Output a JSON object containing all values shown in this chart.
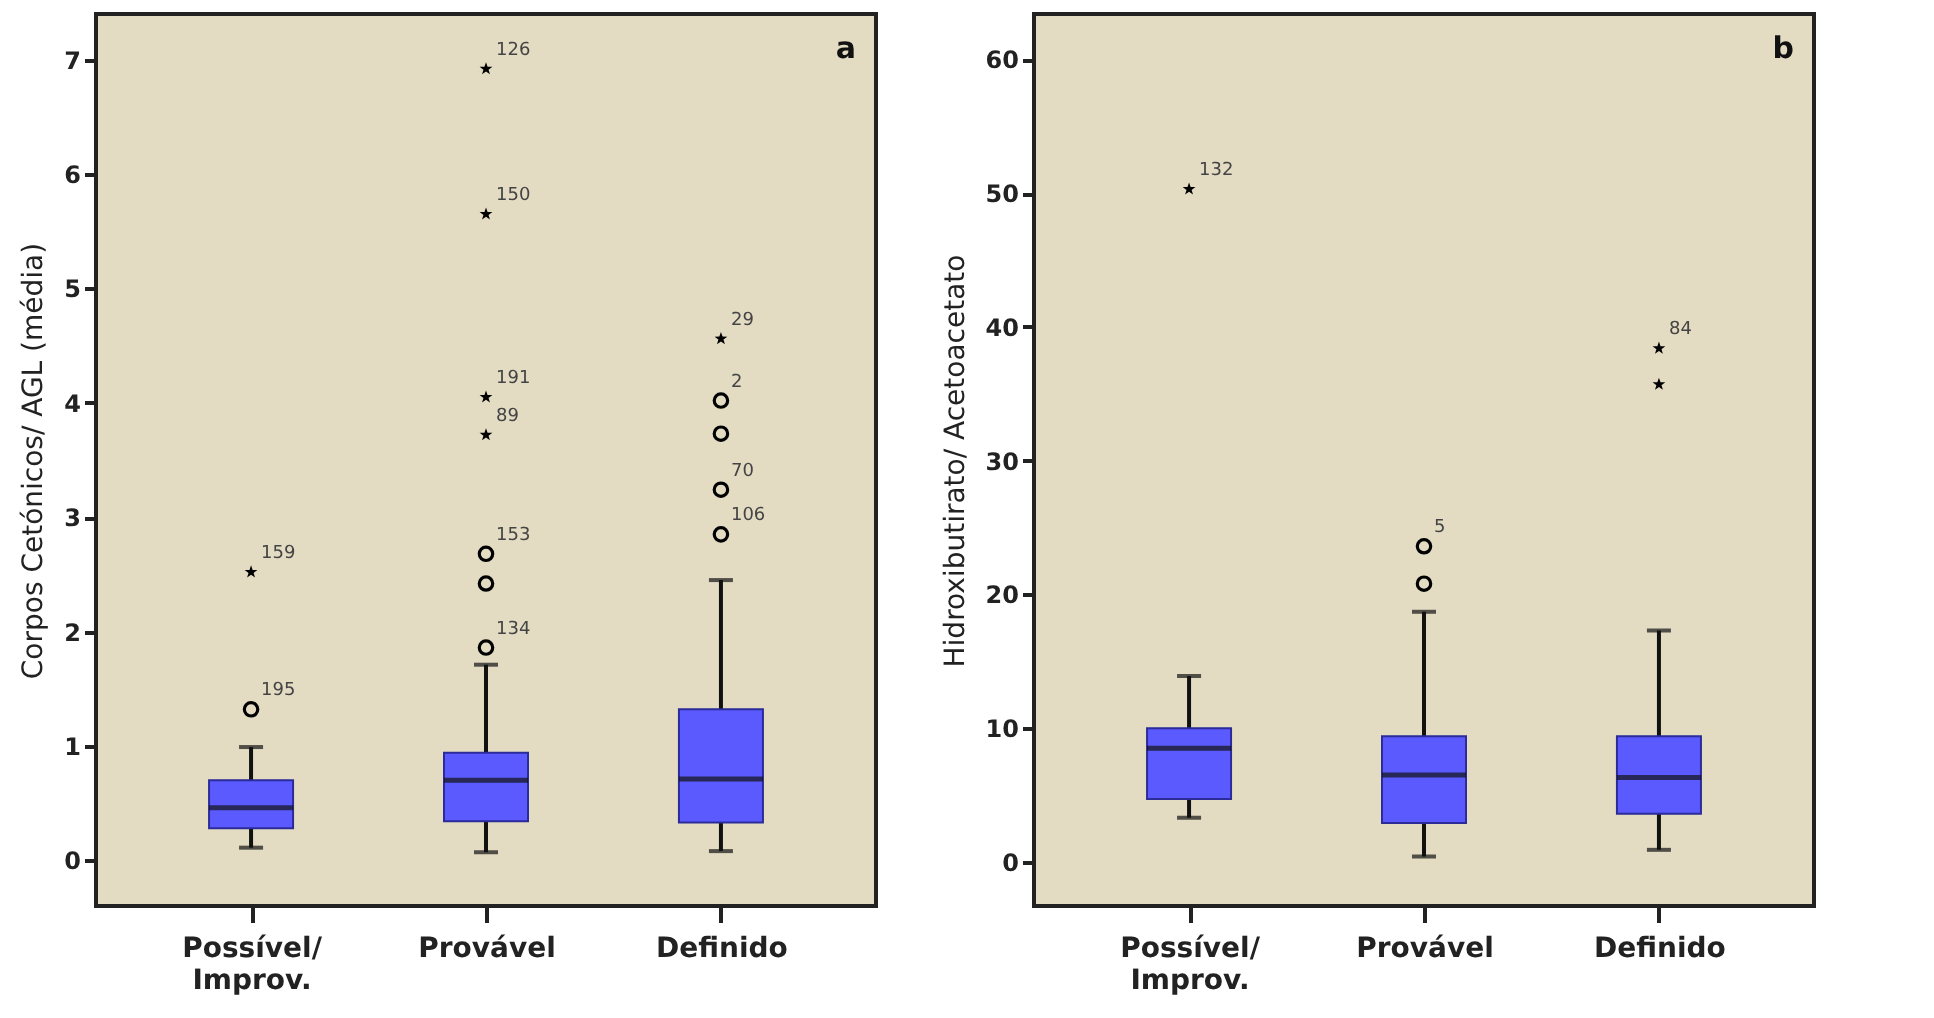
{
  "chart_data": [
    {
      "type": "box",
      "ylabel": "Corpos Cetónicos/ AGL (média)",
      "categories": [
        "Possível/\nImprov.",
        "Provável",
        "Definido"
      ],
      "ylim": [
        -0.4,
        7.4
      ],
      "yticks": [
        0,
        1,
        2,
        3,
        4,
        5,
        6,
        7
      ],
      "series": [
        {
          "color": "#5a5aff",
          "boxes": [
            {
              "low": 0.11,
              "q1": 0.28,
              "median": 0.46,
              "q3": 0.7,
              "high": 0.99
            },
            {
              "low": 0.07,
              "q1": 0.34,
              "median": 0.7,
              "q3": 0.94,
              "high": 1.71
            },
            {
              "low": 0.08,
              "q1": 0.33,
              "median": 0.71,
              "q3": 1.32,
              "high": 2.45
            }
          ]
        },
        {
          "type": "scatter",
          "marker": "circle",
          "color": "#000000",
          "x": [
            "Possível/\nImprov.",
            "Provável",
            "Provável",
            "Provável",
            "Definido",
            "Definido",
            "Definido",
            "Definido"
          ],
          "values": [
            1.32,
            1.86,
            2.42,
            2.68,
            2.85,
            3.24,
            3.73,
            4.02
          ]
        },
        {
          "type": "scatter",
          "marker": "star",
          "color": "#000000",
          "x": [
            "Possível/\nImprov.",
            "Provável",
            "Provável",
            "Provável",
            "Provável",
            "Definido"
          ],
          "values": [
            2.52,
            3.72,
            4.05,
            5.65,
            6.92,
            4.56
          ]
        }
      ],
      "annotations": [
        "a",
        {
          "text": "159",
          "x": "Possível/\nImprov.",
          "y": 2.52
        },
        {
          "text": "195",
          "x": "Possível/\nImprov.",
          "y": 1.32
        },
        {
          "text": "126",
          "x": "Provável",
          "y": 6.92
        },
        {
          "text": "150",
          "x": "Provável",
          "y": 5.65
        },
        {
          "text": "191",
          "x": "Provável",
          "y": 4.05
        },
        {
          "text": "89",
          "x": "Provável",
          "y": 3.72
        },
        {
          "text": "153",
          "x": "Provável",
          "y": 2.68
        },
        {
          "text": "134",
          "x": "Provável",
          "y": 1.86
        },
        {
          "text": "29",
          "x": "Definido",
          "y": 4.56
        },
        {
          "text": "2",
          "x": "Definido",
          "y": 4.02
        },
        {
          "text": "70",
          "x": "Definido",
          "y": 3.24
        },
        {
          "text": "106",
          "x": "Definido",
          "y": 2.85
        }
      ]
    },
    {
      "type": "box",
      "ylabel": "Hidroxibutirato/ Acetoacetato",
      "categories": [
        "Possível/\nImprov.",
        "Provável",
        "Definido"
      ],
      "ylim": [
        -3.3,
        63.4
      ],
      "yticks": [
        0,
        10,
        20,
        30,
        40,
        50,
        60
      ],
      "series": [
        {
          "color": "#5a5aff",
          "boxes": [
            {
              "low": 3.3,
              "q1": 4.7,
              "median": 8.5,
              "q3": 10.0,
              "high": 13.9
            },
            {
              "low": 0.4,
              "q1": 2.9,
              "median": 6.5,
              "q3": 9.4,
              "high": 18.7
            },
            {
              "low": 0.9,
              "q1": 3.6,
              "median": 6.3,
              "q3": 9.4,
              "high": 17.3
            }
          ]
        },
        {
          "type": "scatter",
          "marker": "circle",
          "color": "#000000",
          "x": [
            "Provável",
            "Provável"
          ],
          "values": [
            20.8,
            23.6
          ]
        },
        {
          "type": "scatter",
          "marker": "star",
          "color": "#000000",
          "x": [
            "Possível/\nImprov.",
            "Definido",
            "Definido"
          ],
          "values": [
            50.3,
            35.7,
            38.4
          ]
        }
      ],
      "annotations": [
        "b",
        {
          "text": "132",
          "x": "Possível/\nImprov.",
          "y": 50.3
        },
        {
          "text": "5",
          "x": "Provável",
          "y": 23.6
        },
        {
          "text": "84",
          "x": "Definido",
          "y": 38.4
        }
      ]
    }
  ]
}
